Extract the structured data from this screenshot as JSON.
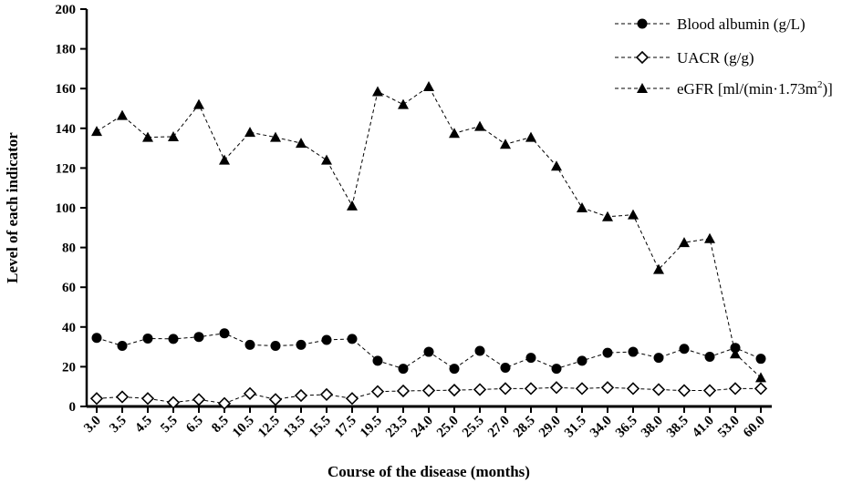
{
  "chart_data": {
    "type": "line",
    "title": "",
    "xlabel": "Course of the disease (months)",
    "ylabel": "Level of each indicator",
    "ylim": [
      0,
      200
    ],
    "yticks": [
      "0",
      "20",
      "40",
      "60",
      "80",
      "100",
      "120",
      "140",
      "160",
      "180",
      "200"
    ],
    "categories": [
      "3.0",
      "3.5",
      "4.5",
      "5.5",
      "6.5",
      "8.5",
      "10.5",
      "12.5",
      "13.5",
      "15.5",
      "17.5",
      "19.5",
      "23.5",
      "24.0",
      "25.0",
      "25.5",
      "27.0",
      "28.5",
      "29.0",
      "31.5",
      "34.0",
      "36.5",
      "38.0",
      "38.5",
      "41.0",
      "53.0",
      "60.0"
    ],
    "grid": false,
    "legend_position": "top-right",
    "series": [
      {
        "name": "Blood albumin (g/L)",
        "marker": "circle",
        "values": [
          34.5,
          30.5,
          34.2,
          34.0,
          35.0,
          36.8,
          31.0,
          30.5,
          31.0,
          33.5,
          34.0,
          23.0,
          19.0,
          27.5,
          19.0,
          28.0,
          19.5,
          24.5,
          19.0,
          23.0,
          27.0,
          27.5,
          24.5,
          29.0,
          25.0,
          29.5,
          24.0
        ]
      },
      {
        "name": "UACR (g/g)",
        "marker": "diamond",
        "values": [
          4.0,
          4.8,
          4.0,
          2.0,
          3.5,
          1.5,
          6.5,
          3.5,
          5.5,
          6.0,
          4.0,
          7.5,
          7.8,
          8.0,
          8.2,
          8.5,
          9.0,
          9.0,
          9.5,
          9.0,
          9.5,
          9.0,
          8.5,
          8.0,
          8.0,
          9.0,
          9.0
        ]
      },
      {
        "name_prefix": "eGFR [ml/(min·1.73m",
        "name_sup": "2",
        "name_suffix": ")]",
        "marker": "triangle",
        "values": [
          138.5,
          146.5,
          135.5,
          135.8,
          152.0,
          124.0,
          138.0,
          135.5,
          132.5,
          124.0,
          101.0,
          158.5,
          152.0,
          161.0,
          137.5,
          141.0,
          132.0,
          135.5,
          121.0,
          100.0,
          95.5,
          96.5,
          69.0,
          82.5,
          84.5,
          26.5,
          14.5
        ]
      }
    ]
  },
  "colors": {
    "line": "#000000",
    "marker_fill_solid": "#000000",
    "marker_fill_hollow": "#ffffff"
  }
}
